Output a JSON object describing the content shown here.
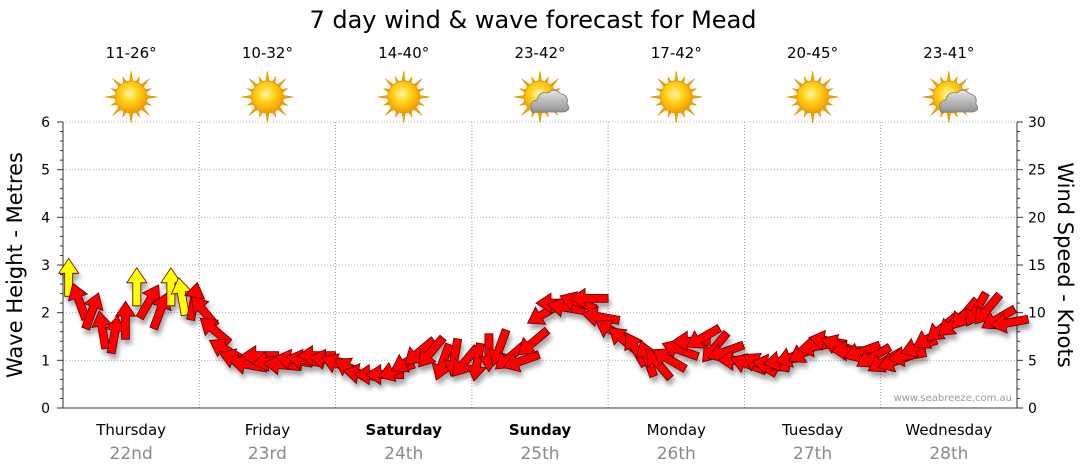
{
  "chart_data": {
    "type": "scatter",
    "title": "7 day wind & wave forecast for Mead",
    "ylabel_left": "Wave Height - Metres",
    "ylabel_right": "Wind Speed - Knots",
    "ylim_left": [
      0,
      6
    ],
    "ylim_right": [
      0,
      30
    ],
    "yticks_left": [
      "0",
      "1",
      "2",
      "3",
      "4",
      "5",
      "6"
    ],
    "yticks_right": [
      "0",
      "5",
      "10",
      "15",
      "20",
      "25",
      "30"
    ],
    "credit": "www.seabreeze.com.au",
    "days": [
      {
        "name": "Thursday",
        "date": "22nd",
        "temp": "11-26°",
        "weather": "sunny",
        "bold": false
      },
      {
        "name": "Friday",
        "date": "23rd",
        "temp": "10-32°",
        "weather": "sunny",
        "bold": false
      },
      {
        "name": "Saturday",
        "date": "24th",
        "temp": "14-40°",
        "weather": "sunny",
        "bold": true
      },
      {
        "name": "Sunday",
        "date": "25th",
        "temp": "23-42°",
        "weather": "partly-cloudy",
        "bold": true
      },
      {
        "name": "Monday",
        "date": "26th",
        "temp": "17-42°",
        "weather": "sunny",
        "bold": false
      },
      {
        "name": "Tuesday",
        "date": "27th",
        "temp": "20-45°",
        "weather": "sunny",
        "bold": false
      },
      {
        "name": "Wednesday",
        "date": "28th",
        "temp": "23-41°",
        "weather": "partly-cloudy",
        "bold": false
      }
    ],
    "series": [
      {
        "colors": {
          "strong": "#ffff00",
          "normal": "#ff0000"
        },
        "wind_knots": [
          13.5,
          11,
          10,
          8,
          7.5,
          9,
          12.5,
          11,
          10,
          12.5,
          11.5,
          11,
          10,
          8,
          6,
          5,
          4.5,
          5.5,
          5,
          4.5,
          5,
          5,
          5.5,
          5,
          4.5,
          4,
          3.5,
          3.5,
          3.5,
          4,
          5,
          6,
          6,
          5,
          5.5,
          5,
          5,
          6,
          6.5,
          5.5,
          5,
          7,
          10,
          11,
          10.5,
          11,
          11.5,
          9.5,
          8,
          7,
          6,
          5,
          4.5,
          5,
          6,
          7,
          7.5,
          6.5,
          6,
          5,
          4.5,
          4.5,
          4.5,
          5,
          5.5,
          6,
          6.5,
          7,
          6.5,
          6,
          6,
          5.5,
          5,
          5,
          5.5,
          6.5,
          7.5,
          8.5,
          9,
          10,
          10.5,
          10.5,
          9.5,
          9
        ],
        "wind_dir_deg": [
          180,
          160,
          200,
          170,
          190,
          180,
          180,
          210,
          200,
          180,
          170,
          190,
          140,
          130,
          120,
          110,
          100,
          90,
          80,
          95,
          100,
          100,
          90,
          100,
          110,
          120,
          100,
          90,
          90,
          70,
          60,
          50,
          40,
          20,
          10,
          40,
          10,
          0,
          20,
          50,
          70,
          50,
          60,
          90,
          100,
          110,
          90,
          100,
          120,
          130,
          150,
          160,
          140,
          120,
          110,
          90,
          60,
          40,
          70,
          90,
          110,
          120,
          100,
          80,
          70,
          60,
          80,
          100,
          110,
          90,
          70,
          60,
          60,
          70,
          80,
          70,
          60,
          50,
          50,
          40,
          30,
          40,
          60,
          80
        ],
        "strong_flags": [
          1,
          0,
          0,
          0,
          0,
          0,
          1,
          0,
          0,
          1,
          1,
          0,
          0,
          0,
          0,
          0,
          0,
          0,
          0,
          0,
          0,
          0,
          0,
          0,
          0,
          0,
          0,
          0,
          0,
          0,
          0,
          0,
          0,
          0,
          0,
          0,
          0,
          0,
          0,
          0,
          0,
          0,
          0,
          0,
          0,
          0,
          0,
          0,
          0,
          0,
          0,
          0,
          0,
          0,
          0,
          0,
          0,
          0,
          0,
          0,
          0,
          0,
          0,
          0,
          0,
          0,
          0,
          0,
          0,
          0,
          0,
          0,
          0,
          0,
          0,
          0,
          0,
          0,
          0,
          0,
          0,
          0,
          0,
          0
        ]
      }
    ]
  }
}
